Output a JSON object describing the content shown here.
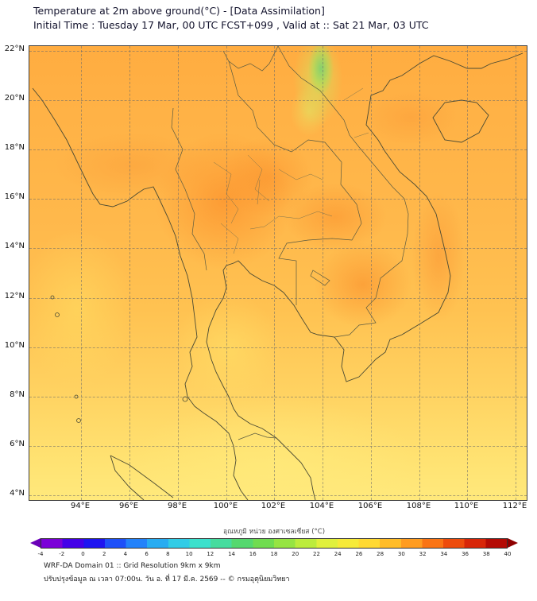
{
  "header": {
    "title": "Temperature at 2m above ground(°C) - [Data Assimilation]",
    "subtitle": "Initial Time : Tuesday 17 Mar, 00 UTC FCST+099 , Valid at :: Sat 21 Mar, 03 UTC"
  },
  "map": {
    "lat_labels": [
      "22°N",
      "20°N",
      "18°N",
      "16°N",
      "14°N",
      "12°N",
      "10°N",
      "8°N",
      "6°N",
      "4°N"
    ],
    "lon_labels": [
      "94°E",
      "96°E",
      "98°E",
      "100°E",
      "102°E",
      "104°E",
      "106°E",
      "108°E",
      "110°E",
      "112°E"
    ]
  },
  "colorbar": {
    "label": "อุณหภูมิ หน่วย องศาเซลเซียส (°C)",
    "ticks": [
      "-4",
      "-2",
      "0",
      "2",
      "4",
      "6",
      "8",
      "10",
      "12",
      "14",
      "16",
      "18",
      "20",
      "22",
      "24",
      "26",
      "28",
      "30",
      "32",
      "34",
      "36",
      "38",
      "40"
    ],
    "segment_colors": [
      "#7b00d8",
      "#4400e8",
      "#1e14f0",
      "#1e50f8",
      "#2382fa",
      "#28acf2",
      "#32cce6",
      "#3ce0cc",
      "#46dc9e",
      "#55d86e",
      "#70dc50",
      "#96e442",
      "#bcec3c",
      "#e0f03c",
      "#f6ea38",
      "#ffd932",
      "#ffbc28",
      "#ff9c20",
      "#fa7414",
      "#ee4c0c",
      "#d82608",
      "#b40a04"
    ],
    "under_arrow_color": "#6a00b8",
    "over_arrow_color": "#8e0000"
  },
  "footer": {
    "line1": "WRF-DA Domain 01 :: Grid Resolution 9km x 9km",
    "line2": "ปรับปรุงข้อมูล ณ เวลา 07:00น. วัน อ. ที่ 17 มี.ค. 2569 -- © กรมอุตุนิยมวิทยา"
  }
}
